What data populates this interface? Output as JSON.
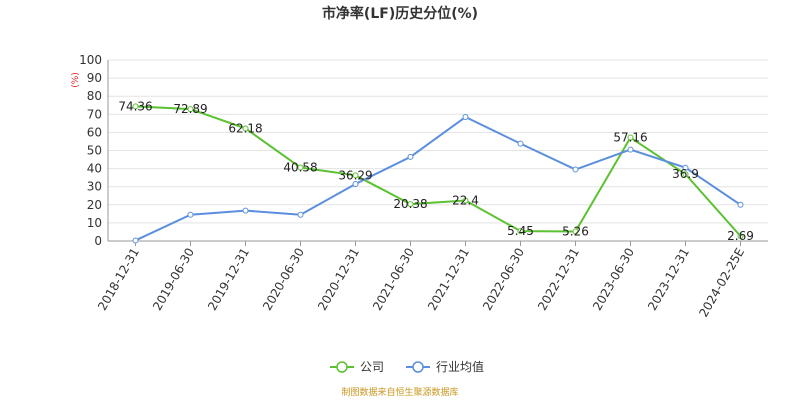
{
  "chart_data": {
    "type": "line",
    "title": "市净率(LF)历史分位(%)",
    "unit_label": "(%)",
    "categories": [
      "2018-12-31",
      "2019-06-30",
      "2019-12-31",
      "2020-06-30",
      "2020-12-31",
      "2021-06-30",
      "2021-12-31",
      "2022-06-30",
      "2022-12-31",
      "2023-06-30",
      "2023-12-31",
      "2024-02-25E"
    ],
    "ylim": [
      0,
      100
    ],
    "yticks": [
      "0",
      "10",
      "20",
      "30",
      "40",
      "50",
      "60",
      "70",
      "80",
      "90",
      "100"
    ],
    "grid": true,
    "legend_position": "bottom",
    "series": [
      {
        "name": "公司",
        "color": "#5ac12f",
        "values": [
          74.36,
          72.89,
          62.18,
          40.58,
          36.29,
          20.38,
          22.4,
          5.45,
          5.26,
          57.16,
          36.9,
          2.69
        ],
        "labels": [
          "74.36",
          "72.89",
          "62.18",
          "40.58",
          "36.29",
          "20.38",
          "22.4",
          "5.45",
          "5.26",
          "57.16",
          "36.9",
          "2.69"
        ]
      },
      {
        "name": "行业均值",
        "color": "#5b8fde",
        "values": [
          0.3,
          14.5,
          16.8,
          14.5,
          31.5,
          46.5,
          68.5,
          53.8,
          39.5,
          50.5,
          40.5,
          20.0
        ]
      }
    ],
    "source_note": "制图数据来自恒生聚源数据库"
  }
}
